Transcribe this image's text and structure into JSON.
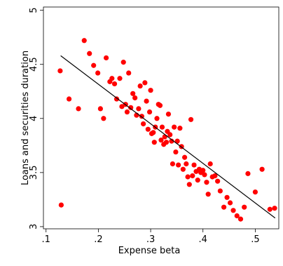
{
  "chart_data": {
    "type": "scatter",
    "title": "",
    "xlabel": "Expense beta",
    "ylabel": "Loans and securities duration",
    "xlim": [
      0.095,
      0.545
    ],
    "ylim": [
      2.98,
      5.03
    ],
    "x_ticks": [
      0.1,
      0.2,
      0.3,
      0.4,
      0.5
    ],
    "x_tick_labels": [
      ".1",
      ".2",
      ".3",
      ".4",
      ".5"
    ],
    "y_ticks": [
      3,
      3.5,
      4,
      4.5,
      5
    ],
    "y_tick_labels": [
      "3",
      "3.5",
      "4",
      "4.5",
      "5"
    ],
    "grid": false,
    "legend": "none",
    "colors": {
      "points": "#ff0000",
      "fit_line": "#000000",
      "frame": "#000000",
      "background": "#ffffff"
    },
    "fit_line": {
      "x": [
        0.128,
        0.538
      ],
      "y": [
        4.58,
        3.08
      ]
    },
    "series": [
      {
        "values": [
          {
            "x": 0.127,
            "y": 4.44
          },
          {
            "x": 0.129,
            "y": 3.2
          },
          {
            "x": 0.144,
            "y": 4.18
          },
          {
            "x": 0.162,
            "y": 4.09
          },
          {
            "x": 0.173,
            "y": 4.72
          },
          {
            "x": 0.183,
            "y": 4.6
          },
          {
            "x": 0.191,
            "y": 4.49
          },
          {
            "x": 0.199,
            "y": 4.42
          },
          {
            "x": 0.204,
            "y": 4.09
          },
          {
            "x": 0.21,
            "y": 4.0
          },
          {
            "x": 0.215,
            "y": 4.56
          },
          {
            "x": 0.222,
            "y": 4.34
          },
          {
            "x": 0.226,
            "y": 4.37
          },
          {
            "x": 0.231,
            "y": 4.32
          },
          {
            "x": 0.235,
            "y": 4.18
          },
          {
            "x": 0.241,
            "y": 4.37
          },
          {
            "x": 0.245,
            "y": 4.11
          },
          {
            "x": 0.248,
            "y": 4.52
          },
          {
            "x": 0.252,
            "y": 4.13
          },
          {
            "x": 0.255,
            "y": 4.06
          },
          {
            "x": 0.258,
            "y": 4.42
          },
          {
            "x": 0.262,
            "y": 4.1
          },
          {
            "x": 0.266,
            "y": 4.23
          },
          {
            "x": 0.27,
            "y": 4.19
          },
          {
            "x": 0.273,
            "y": 4.03
          },
          {
            "x": 0.277,
            "y": 4.09
          },
          {
            "x": 0.28,
            "y": 4.3
          },
          {
            "x": 0.283,
            "y": 4.02
          },
          {
            "x": 0.286,
            "y": 3.95
          },
          {
            "x": 0.289,
            "y": 4.33
          },
          {
            "x": 0.292,
            "y": 4.16
          },
          {
            "x": 0.295,
            "y": 3.9
          },
          {
            "x": 0.298,
            "y": 4.06
          },
          {
            "x": 0.3,
            "y": 4.26
          },
          {
            "x": 0.302,
            "y": 3.86
          },
          {
            "x": 0.305,
            "y": 3.87
          },
          {
            "x": 0.307,
            "y": 3.78
          },
          {
            "x": 0.309,
            "y": 3.92
          },
          {
            "x": 0.312,
            "y": 4.0
          },
          {
            "x": 0.315,
            "y": 4.13
          },
          {
            "x": 0.318,
            "y": 4.12
          },
          {
            "x": 0.32,
            "y": 3.8
          },
          {
            "x": 0.322,
            "y": 3.92
          },
          {
            "x": 0.325,
            "y": 3.76
          },
          {
            "x": 0.327,
            "y": 3.83
          },
          {
            "x": 0.33,
            "y": 3.78
          },
          {
            "x": 0.332,
            "y": 3.88
          },
          {
            "x": 0.334,
            "y": 4.04
          },
          {
            "x": 0.337,
            "y": 3.85
          },
          {
            "x": 0.34,
            "y": 3.79
          },
          {
            "x": 0.342,
            "y": 3.58
          },
          {
            "x": 0.345,
            "y": 3.92
          },
          {
            "x": 0.348,
            "y": 3.69
          },
          {
            "x": 0.351,
            "y": 3.79
          },
          {
            "x": 0.353,
            "y": 3.57
          },
          {
            "x": 0.356,
            "y": 3.91
          },
          {
            "x": 0.359,
            "y": 3.74
          },
          {
            "x": 0.362,
            "y": 3.53
          },
          {
            "x": 0.365,
            "y": 3.64
          },
          {
            "x": 0.368,
            "y": 3.58
          },
          {
            "x": 0.371,
            "y": 3.46
          },
          {
            "x": 0.374,
            "y": 3.39
          },
          {
            "x": 0.377,
            "y": 3.99
          },
          {
            "x": 0.38,
            "y": 3.47
          },
          {
            "x": 0.383,
            "y": 3.57
          },
          {
            "x": 0.387,
            "y": 3.51
          },
          {
            "x": 0.39,
            "y": 3.43
          },
          {
            "x": 0.393,
            "y": 3.53
          },
          {
            "x": 0.396,
            "y": 3.5
          },
          {
            "x": 0.4,
            "y": 3.52
          },
          {
            "x": 0.403,
            "y": 3.48
          },
          {
            "x": 0.407,
            "y": 3.41
          },
          {
            "x": 0.41,
            "y": 3.3
          },
          {
            "x": 0.414,
            "y": 3.58
          },
          {
            "x": 0.418,
            "y": 3.46
          },
          {
            "x": 0.423,
            "y": 3.47
          },
          {
            "x": 0.428,
            "y": 3.42
          },
          {
            "x": 0.433,
            "y": 3.33
          },
          {
            "x": 0.44,
            "y": 3.18
          },
          {
            "x": 0.446,
            "y": 3.27
          },
          {
            "x": 0.452,
            "y": 3.22
          },
          {
            "x": 0.458,
            "y": 3.15
          },
          {
            "x": 0.465,
            "y": 3.1
          },
          {
            "x": 0.472,
            "y": 3.07
          },
          {
            "x": 0.479,
            "y": 3.18
          },
          {
            "x": 0.486,
            "y": 3.49
          },
          {
            "x": 0.5,
            "y": 3.32
          },
          {
            "x": 0.513,
            "y": 3.53
          },
          {
            "x": 0.528,
            "y": 3.16
          },
          {
            "x": 0.537,
            "y": 3.17
          }
        ]
      }
    ]
  }
}
